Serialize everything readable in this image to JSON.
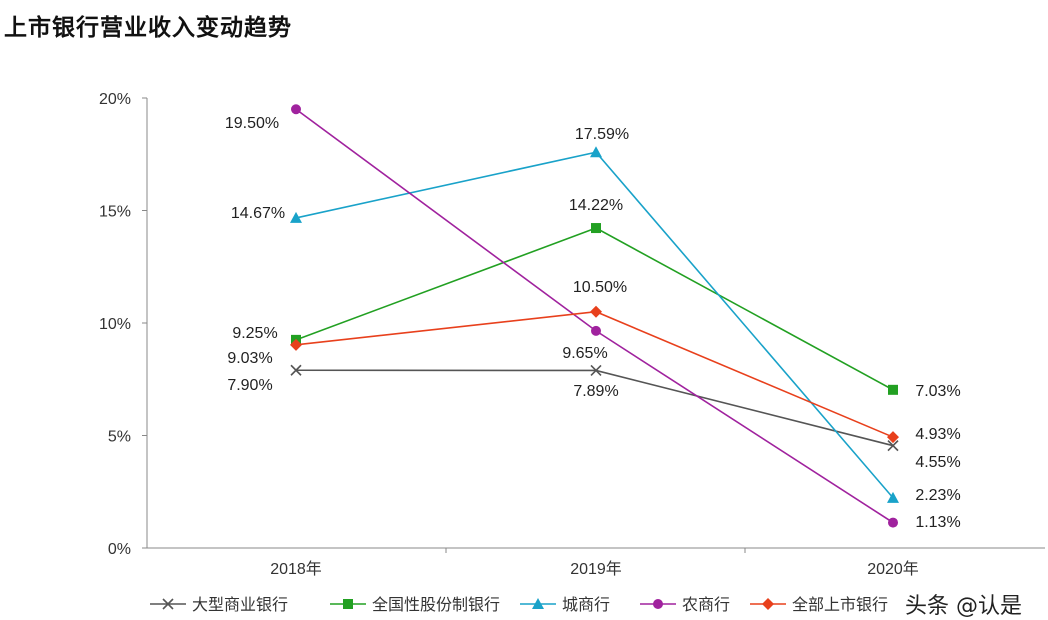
{
  "chart_data": {
    "type": "line",
    "title": "上市银行营业收入变动趋势",
    "categories": [
      "2018年",
      "2019年",
      "2020年"
    ],
    "yticks": [
      "0%",
      "5%",
      "10%",
      "15%",
      "20%"
    ],
    "ylim": [
      0,
      20
    ],
    "grid": false,
    "legend_position": "bottom",
    "series": [
      {
        "name": "大型商业银行",
        "color": "#555555",
        "marker": "x",
        "values": [
          7.9,
          7.89,
          4.55
        ],
        "labels": [
          "7.90%",
          "7.89%",
          "4.55%"
        ]
      },
      {
        "name": "全国性股份制银行",
        "color": "#22a022",
        "marker": "square",
        "values": [
          9.25,
          14.22,
          7.03
        ],
        "labels": [
          "9.25%",
          "14.22%",
          "7.03%"
        ]
      },
      {
        "name": "城商行",
        "color": "#19a2c9",
        "marker": "triangle",
        "values": [
          14.67,
          17.59,
          2.23
        ],
        "labels": [
          "14.67%",
          "17.59%",
          "2.23%"
        ]
      },
      {
        "name": "农商行",
        "color": "#a0229e",
        "marker": "circle",
        "values": [
          19.5,
          9.65,
          1.13
        ],
        "labels": [
          "19.50%",
          "9.65%",
          "1.13%"
        ]
      },
      {
        "name": "全部上市银行",
        "color": "#e8401c",
        "marker": "diamond",
        "values": [
          9.03,
          10.5,
          4.93
        ],
        "labels": [
          "9.03%",
          "10.50%",
          "4.93%"
        ]
      }
    ]
  },
  "watermark": "头条 @认是"
}
